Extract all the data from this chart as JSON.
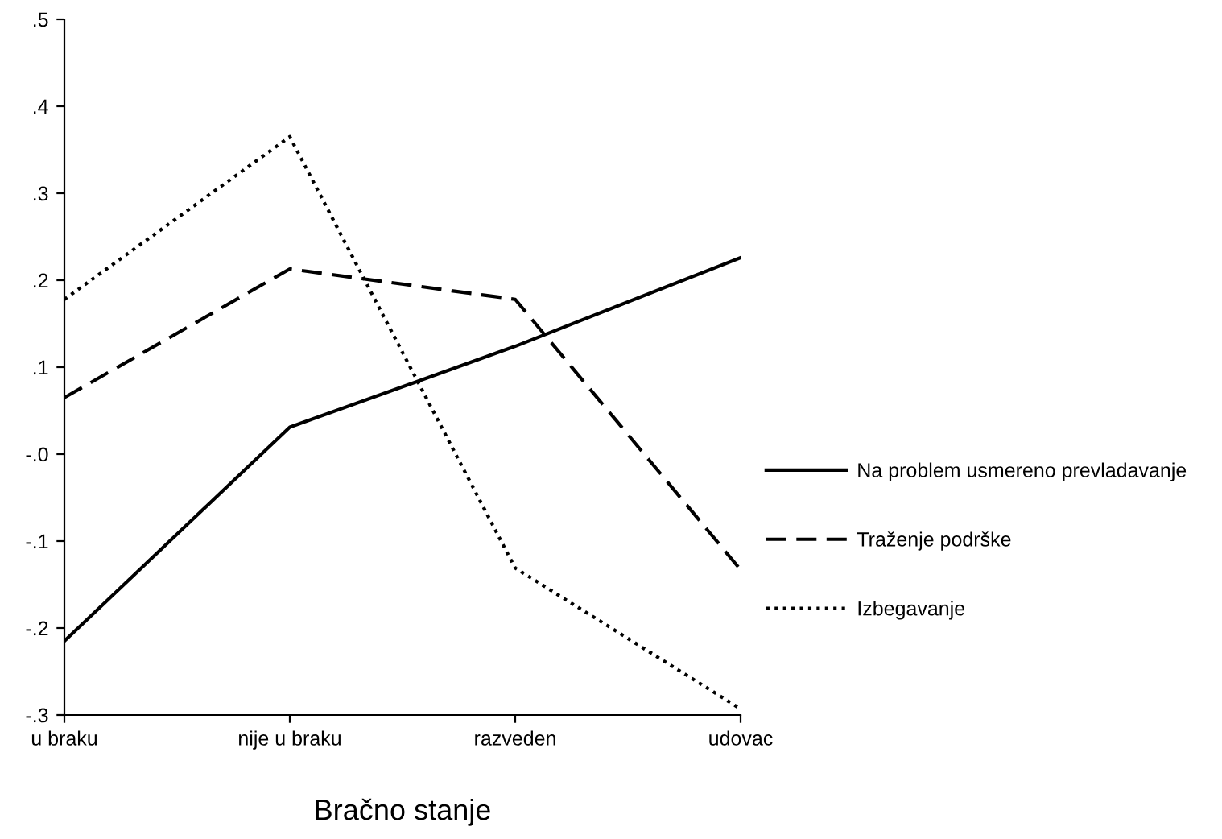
{
  "chart_data": {
    "type": "line",
    "xlabel": "Bračno stanje",
    "categories": [
      "u braku",
      "nije u braku",
      "razveden",
      "udovac"
    ],
    "series": [
      {
        "name": "Na problem usmereno prevladavanje",
        "color": "#000000",
        "line_style": "solid",
        "values": [
          -0.215,
          0.031,
          0.124,
          0.226
        ]
      },
      {
        "name": "Traženje podrške",
        "color": "#000000",
        "line_style": "dashed",
        "values": [
          0.065,
          0.213,
          0.178,
          -0.133
        ]
      },
      {
        "name": "Izbegavanje",
        "color": "#000000",
        "line_style": "dotted",
        "values": [
          0.178,
          0.365,
          -0.131,
          -0.293
        ]
      }
    ],
    "ylim": [
      -0.3,
      0.5
    ],
    "yticks": [
      {
        "value": 0.5,
        "label": ".5"
      },
      {
        "value": 0.4,
        "label": ".4"
      },
      {
        "value": 0.3,
        "label": ".3"
      },
      {
        "value": 0.2,
        "label": ".2"
      },
      {
        "value": 0.1,
        "label": ".1"
      },
      {
        "value": 0,
        "label": "-.0"
      },
      {
        "value": -0.1,
        "label": "-.1"
      },
      {
        "value": -0.2,
        "label": "-.2"
      },
      {
        "value": -0.3,
        "label": "-.3"
      }
    ],
    "grid": false,
    "legend": "right",
    "marker": "none"
  }
}
